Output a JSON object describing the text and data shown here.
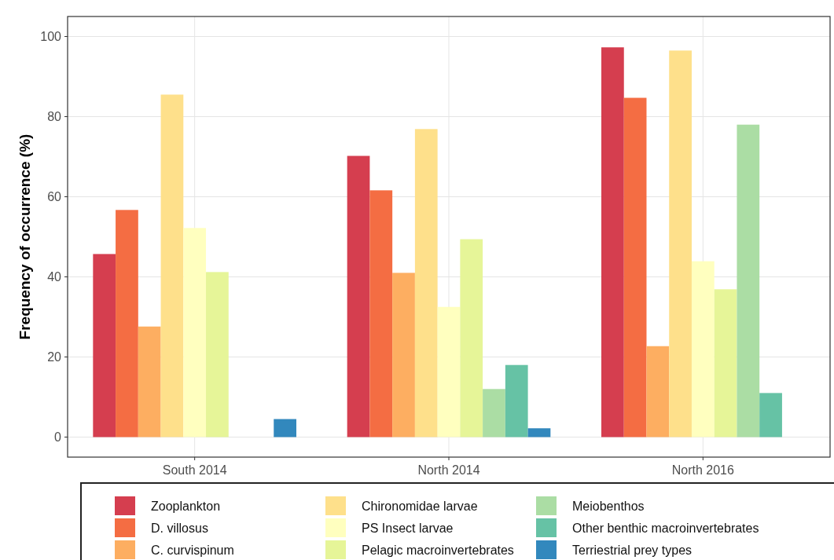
{
  "chart_data": {
    "type": "bar",
    "ylabel": "Frequency of occurrence (%)",
    "categories": [
      "South 2014",
      "North 2014",
      "North 2016"
    ],
    "series": [
      {
        "name": "Zooplankton",
        "color": "#d53e4f",
        "values": [
          45.7,
          70.2,
          97.3
        ]
      },
      {
        "name": "D. villosus",
        "color": "#f46d43",
        "values": [
          56.7,
          61.6,
          84.7
        ]
      },
      {
        "name": "C. curvispinum",
        "color": "#fdae61",
        "values": [
          27.6,
          41.0,
          22.7
        ]
      },
      {
        "name": "Chironomidae larvae",
        "color": "#fee08b",
        "values": [
          85.5,
          76.9,
          96.5
        ]
      },
      {
        "name": "PS Insect larvae",
        "color": "#ffffbf",
        "values": [
          52.2,
          32.5,
          43.9
        ]
      },
      {
        "name": "Pelagic macroinvertebrates",
        "color": "#e6f598",
        "values": [
          41.2,
          49.4,
          36.9
        ]
      },
      {
        "name": "Meiobenthos",
        "color": "#abdda4",
        "values": [
          null,
          12.0,
          78.0
        ]
      },
      {
        "name": "Other benthic macroinvertebrates",
        "color": "#66c2a5",
        "values": [
          null,
          18.0,
          11.0
        ]
      },
      {
        "name": "Terriestrial prey types",
        "color": "#3288bd",
        "values": [
          4.5,
          2.2,
          null
        ]
      }
    ],
    "ylim": [
      -5,
      105
    ],
    "yticks": [
      0,
      20,
      40,
      60,
      80,
      100
    ],
    "grid": true,
    "legend": "bottom"
  }
}
